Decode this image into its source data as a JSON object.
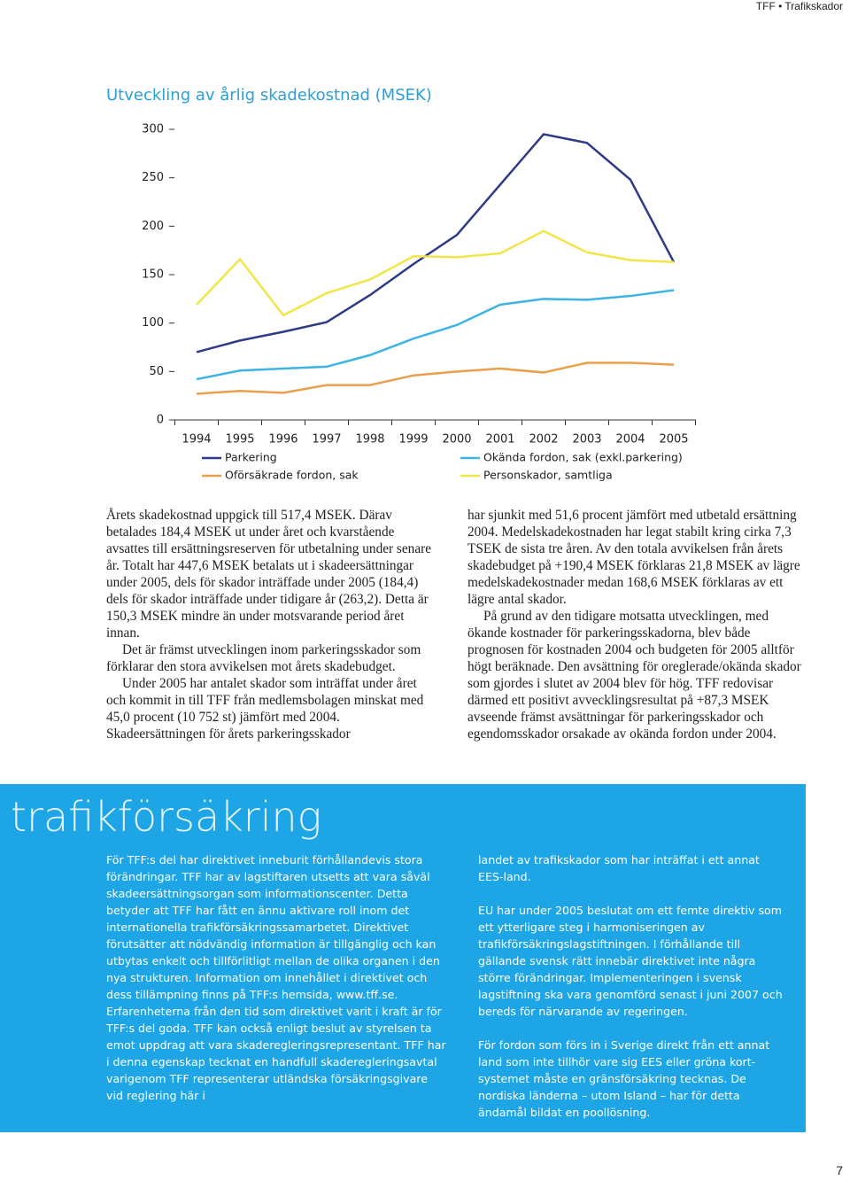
{
  "header": {
    "text": "TFF • Trafikskador"
  },
  "chart_data": {
    "type": "line",
    "title": "Utveckling av årlig skadekostnad (MSEK)",
    "categories": [
      "1994",
      "1995",
      "1996",
      "1997",
      "1998",
      "1999",
      "2000",
      "2001",
      "2002",
      "2003",
      "2004",
      "2005"
    ],
    "series": [
      {
        "name": "Parkering",
        "color": "#2e3a87",
        "values": [
          70,
          82,
          91,
          101,
          129,
          161,
          191,
          243,
          295,
          286,
          248,
          163
        ]
      },
      {
        "name": "Okända fordon, sak (exkl.parkering)",
        "color": "#3db4e5",
        "values": [
          42,
          51,
          53,
          55,
          67,
          84,
          98,
          119,
          125,
          124,
          128,
          134
        ]
      },
      {
        "name": "Oförsäkrade fordon, sak",
        "color": "#e8a04c",
        "values": [
          27,
          30,
          28,
          36,
          36,
          46,
          50,
          53,
          49,
          59,
          59,
          57
        ]
      },
      {
        "name": "Personskador, samtliga",
        "color": "#f0e64a",
        "values": [
          119,
          166,
          108,
          131,
          145,
          169,
          168,
          172,
          195,
          173,
          165,
          163
        ]
      }
    ],
    "ylim": [
      0,
      300
    ],
    "yticks": [
      0,
      50,
      100,
      150,
      200,
      250,
      300
    ],
    "grid": false
  },
  "body": {
    "left": [
      "Årets skadekostnad uppgick till 517,4 MSEK. Därav betalades 184,4 MSEK ut under året och kvarstående avsattes till ersättningsreserven för utbetalning under senare år. Totalt har 447,6 MSEK betalats ut i skadeersättningar under 2005, dels för skador inträffade under 2005 (184,4) dels för skador inträffade under tidigare år (263,2). Detta är 150,3 MSEK mindre än under motsvarande period året innan.",
      "Det är främst utvecklingen inom parkeringsskador som förklarar den stora avvikelsen mot årets skadebudget.",
      "Under 2005 har antalet skador som inträffat under året och kommit in till TFF från medlemsbolagen minskat med 45,0 procent (10 752 st) jämfört med 2004. Skadeersättningen för årets parkeringsskador"
    ],
    "right": [
      "har sjunkit med 51,6 procent jämfört med utbetald ersättning 2004. Medelskadekostnaden har legat stabilt kring cirka 7,3 TSEK de sista tre åren. Av den totala avvikelsen från årets skadebudget på +190,4 MSEK förklaras 21,8 MSEK av lägre medelskadekostnader medan 168,6 MSEK förklaras av ett lägre antal skador.",
      "På grund av den tidigare motsatta utvecklingen, med ökande kostnader för parkeringsskadorna, blev både prognosen för kostnaden 2004 och budgeten för 2005 alltför högt beräknade. Den avsättning för oreglerade/okända skador som gjordes i slutet av 2004 blev för hög. TFF redovisar därmed ett positivt avvecklingsresultat på +87,3 MSEK avseende främst avsättningar för parkeringsskador och egendomsskador orsakade av okända fordon under 2004."
    ]
  },
  "section": {
    "title": "trafikförsäkring",
    "left": [
      "För TFF:s del har direktivet inneburit förhållandevis stora förändringar. TFF har av lagstiftaren utsetts att vara såväl skadeersättningsorgan som informationscenter. Detta betyder att TFF har fått en ännu aktivare roll inom det internationella trafikförsäkringssamarbetet. Direktivet förutsätter att nödvändig information är tillgänglig och kan utbytas enkelt och tillförlitligt mellan de olika organen i den nya strukturen. Information om innehållet i direktivet och dess tillämpning finns på TFF:s hemsida, www.tff.se. Erfarenheterna från den tid som direktivet varit i kraft är för TFF:s del goda. TFF kan också enligt beslut av styrelsen ta emot uppdrag att vara skaderegleringsrepresentant. TFF har i denna egenskap tecknat en handfull skaderegleringsavtal varigenom TFF representerar utländska försäkringsgivare vid reglering här i"
    ],
    "right": [
      "landet av trafikskador som har inträffat i ett annat EES-land.",
      "EU har under 2005 beslutat om ett femte direktiv som ett ytterligare steg i harmoniseringen av trafikförsäkringslagstiftningen. I förhållande till gällande svensk rätt innebär direktivet inte några större förändringar. Implementeringen i svensk lagstiftning ska vara genomförd senast i juni 2007 och bereds för närvarande av regeringen.",
      "För fordon som förs in i Sverige direkt från ett annat land som inte tillhör vare sig EES eller gröna kort-systemet måste en gränsförsäkring tecknas. De nordiska länderna – utom Island – har för detta ändamål bildat en poollösning."
    ]
  },
  "footer": {
    "page": "7"
  }
}
